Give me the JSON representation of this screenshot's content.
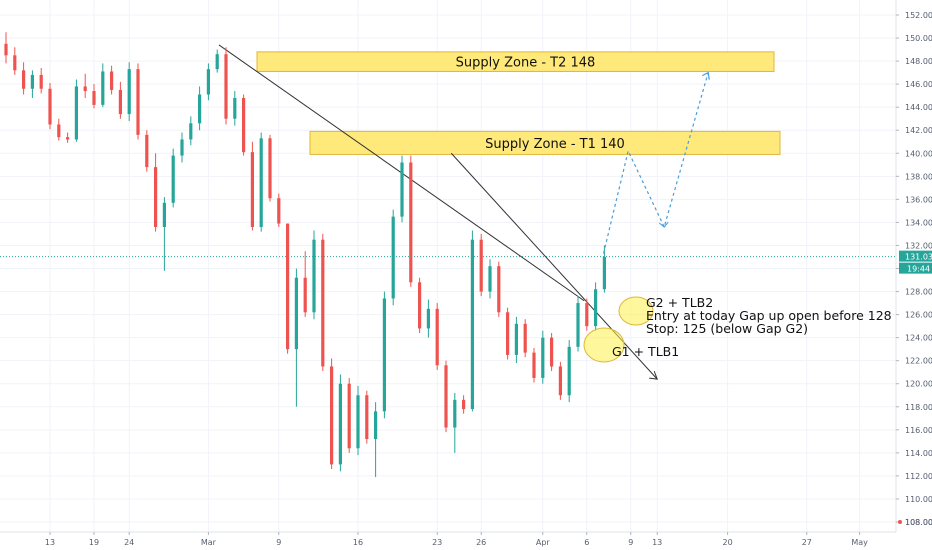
{
  "chart_data": {
    "type": "candlestick",
    "ylim": [
      107,
      153
    ],
    "y_ticks": [
      108,
      110,
      112,
      114,
      116,
      118,
      120,
      122,
      124,
      126,
      128,
      130,
      132,
      134,
      136,
      138,
      140,
      142,
      144,
      146,
      148,
      150,
      152
    ],
    "y_tick_labels": [
      "108.00",
      "110.00",
      "112.00",
      "114.00",
      "116.00",
      "118.00",
      "120.00",
      "122.00",
      "124.00",
      "126.00",
      "128.00",
      "130.00",
      "132.00",
      "134.00",
      "136.00",
      "138.00",
      "140.00",
      "142.00",
      "144.00",
      "146.00",
      "148.00",
      "150.00",
      "152.00"
    ],
    "x_ticks": [
      {
        "label": "13",
        "bar": 5
      },
      {
        "label": "19",
        "bar": 10
      },
      {
        "label": "24",
        "bar": 14
      },
      {
        "label": "Mar",
        "bar": 23
      },
      {
        "label": "9",
        "bar": 31
      },
      {
        "label": "16",
        "bar": 40
      },
      {
        "label": "23",
        "bar": 49
      },
      {
        "label": "26",
        "bar": 54
      },
      {
        "label": "Apr",
        "bar": 61
      },
      {
        "label": "6",
        "bar": 66
      },
      {
        "label": "9",
        "bar": 71
      },
      {
        "label": "13",
        "bar": 74
      },
      {
        "label": "20",
        "bar": 82
      },
      {
        "label": "27",
        "bar": 91
      },
      {
        "label": "May",
        "bar": 97
      }
    ],
    "last_price": 131.03,
    "last_price_label": "131.03",
    "countdown_label": "19:44",
    "bottom_price_label": "108.00",
    "bottom_price_value": 108,
    "colors": {
      "up": "#26a69a",
      "down": "#ef5350",
      "zone_fill": "#ffe97a",
      "zone_border": "#e0b63a",
      "projection": "#4a9cd8",
      "last_price": "#26a69a"
    },
    "candles": [
      [
        149.5,
        150.5,
        147.8,
        148.5
      ],
      [
        148.5,
        149.2,
        146.8,
        147.2
      ],
      [
        147.2,
        147.9,
        145.1,
        145.6
      ],
      [
        145.6,
        147.2,
        144.8,
        146.8
      ],
      [
        146.8,
        147.4,
        145.2,
        145.6
      ],
      [
        145.6,
        146.1,
        142.1,
        142.5
      ],
      [
        142.5,
        143.0,
        141.1,
        141.4
      ],
      [
        141.4,
        141.8,
        140.9,
        141.2
      ],
      [
        141.2,
        146.4,
        141.0,
        145.8
      ],
      [
        145.8,
        146.9,
        144.8,
        145.4
      ],
      [
        145.4,
        146.0,
        143.9,
        144.2
      ],
      [
        144.2,
        147.8,
        144.0,
        147.1
      ],
      [
        147.1,
        147.6,
        145.1,
        145.5
      ],
      [
        145.5,
        146.2,
        143.0,
        143.4
      ],
      [
        143.4,
        147.9,
        142.8,
        147.3
      ],
      [
        147.3,
        147.8,
        141.2,
        141.6
      ],
      [
        141.6,
        142.0,
        138.4,
        138.8
      ],
      [
        138.8,
        140.0,
        133.2,
        133.6
      ],
      [
        133.6,
        136.2,
        129.8,
        135.7
      ],
      [
        135.7,
        140.4,
        135.3,
        139.8
      ],
      [
        139.8,
        141.8,
        139.2,
        141.2
      ],
      [
        141.2,
        143.2,
        140.7,
        142.6
      ],
      [
        142.6,
        145.8,
        142.0,
        145.1
      ],
      [
        145.1,
        147.8,
        144.6,
        147.3
      ],
      [
        147.3,
        149.0,
        147.0,
        148.6
      ],
      [
        148.6,
        149.2,
        142.5,
        143.0
      ],
      [
        143.0,
        145.4,
        142.4,
        144.8
      ],
      [
        144.8,
        145.1,
        139.8,
        140.1
      ],
      [
        140.1,
        141.0,
        133.3,
        133.6
      ],
      [
        133.6,
        141.8,
        133.2,
        141.3
      ],
      [
        141.3,
        141.6,
        135.8,
        136.1
      ],
      [
        136.1,
        136.5,
        133.6,
        133.9
      ],
      [
        133.9,
        133.9,
        122.6,
        123.0
      ],
      [
        123.0,
        130.0,
        118.0,
        129.2
      ],
      [
        129.2,
        131.5,
        125.8,
        126.2
      ],
      [
        126.2,
        133.3,
        125.6,
        132.5
      ],
      [
        132.5,
        133.0,
        121.1,
        121.5
      ],
      [
        121.5,
        122.2,
        112.6,
        113.0
      ],
      [
        113.0,
        120.8,
        112.4,
        120.0
      ],
      [
        120.0,
        120.5,
        114.0,
        114.4
      ],
      [
        114.4,
        119.8,
        113.8,
        119.0
      ],
      [
        119.0,
        119.4,
        114.8,
        115.2
      ],
      [
        115.2,
        118.4,
        111.9,
        117.6
      ],
      [
        117.6,
        128.0,
        117.0,
        127.4
      ],
      [
        127.4,
        135.1,
        126.8,
        134.5
      ],
      [
        134.5,
        139.8,
        134.0,
        139.2
      ],
      [
        139.2,
        139.8,
        128.4,
        128.8
      ],
      [
        128.8,
        129.2,
        124.4,
        124.8
      ],
      [
        124.8,
        127.3,
        124.0,
        126.5
      ],
      [
        126.5,
        127.0,
        121.2,
        121.6
      ],
      [
        121.6,
        122.0,
        115.8,
        116.2
      ],
      [
        116.2,
        119.2,
        114.0,
        118.6
      ],
      [
        118.6,
        119.0,
        117.4,
        117.8
      ],
      [
        117.8,
        133.3,
        117.6,
        132.5
      ],
      [
        132.5,
        133.0,
        127.6,
        128.0
      ],
      [
        128.0,
        130.8,
        127.4,
        130.2
      ],
      [
        130.2,
        130.6,
        125.8,
        126.2
      ],
      [
        126.2,
        126.6,
        122.1,
        122.5
      ],
      [
        122.5,
        125.8,
        121.8,
        125.2
      ],
      [
        125.2,
        125.6,
        122.3,
        122.7
      ],
      [
        122.7,
        123.1,
        120.1,
        120.5
      ],
      [
        120.5,
        124.6,
        120.0,
        124.0
      ],
      [
        124.0,
        124.4,
        121.1,
        121.5
      ],
      [
        121.5,
        121.9,
        118.6,
        119.0
      ],
      [
        119.0,
        123.8,
        118.4,
        123.2
      ],
      [
        123.2,
        127.6,
        122.8,
        127.0
      ],
      [
        127.0,
        127.4,
        124.6,
        125.0
      ],
      [
        125.0,
        128.8,
        124.6,
        128.2
      ],
      [
        128.2,
        132.0,
        127.9,
        131.0
      ]
    ],
    "annotations": [
      {
        "label": "Supply Zone - T2 148",
        "y_low": 147.1,
        "y_high": 148.8
      },
      {
        "label": "Supply Zone - T1 140",
        "y_low": 139.9,
        "y_high": 141.9
      }
    ],
    "notes": [
      "G2 + TLB2",
      "Entry at  today Gap up open before 128",
      "Stop: 125 (below Gap G2)",
      "G1 + TLB1"
    ],
    "projection": [
      {
        "bar": 67.9,
        "y": 131.3
      },
      {
        "bar": 70.7,
        "y": 140.2
      },
      {
        "bar": 74.8,
        "y": 133.6
      },
      {
        "bar": 79.8,
        "y": 147.0
      }
    ],
    "trendlines": [
      {
        "from": {
          "bar": 24.2,
          "y": 149.4
        },
        "to": {
          "bar": 65.7,
          "y": 127.2
        }
      },
      {
        "from": {
          "bar": 50.6,
          "y": 140.0
        },
        "to": {
          "bar": 74.0,
          "y": 120.4
        }
      }
    ]
  }
}
